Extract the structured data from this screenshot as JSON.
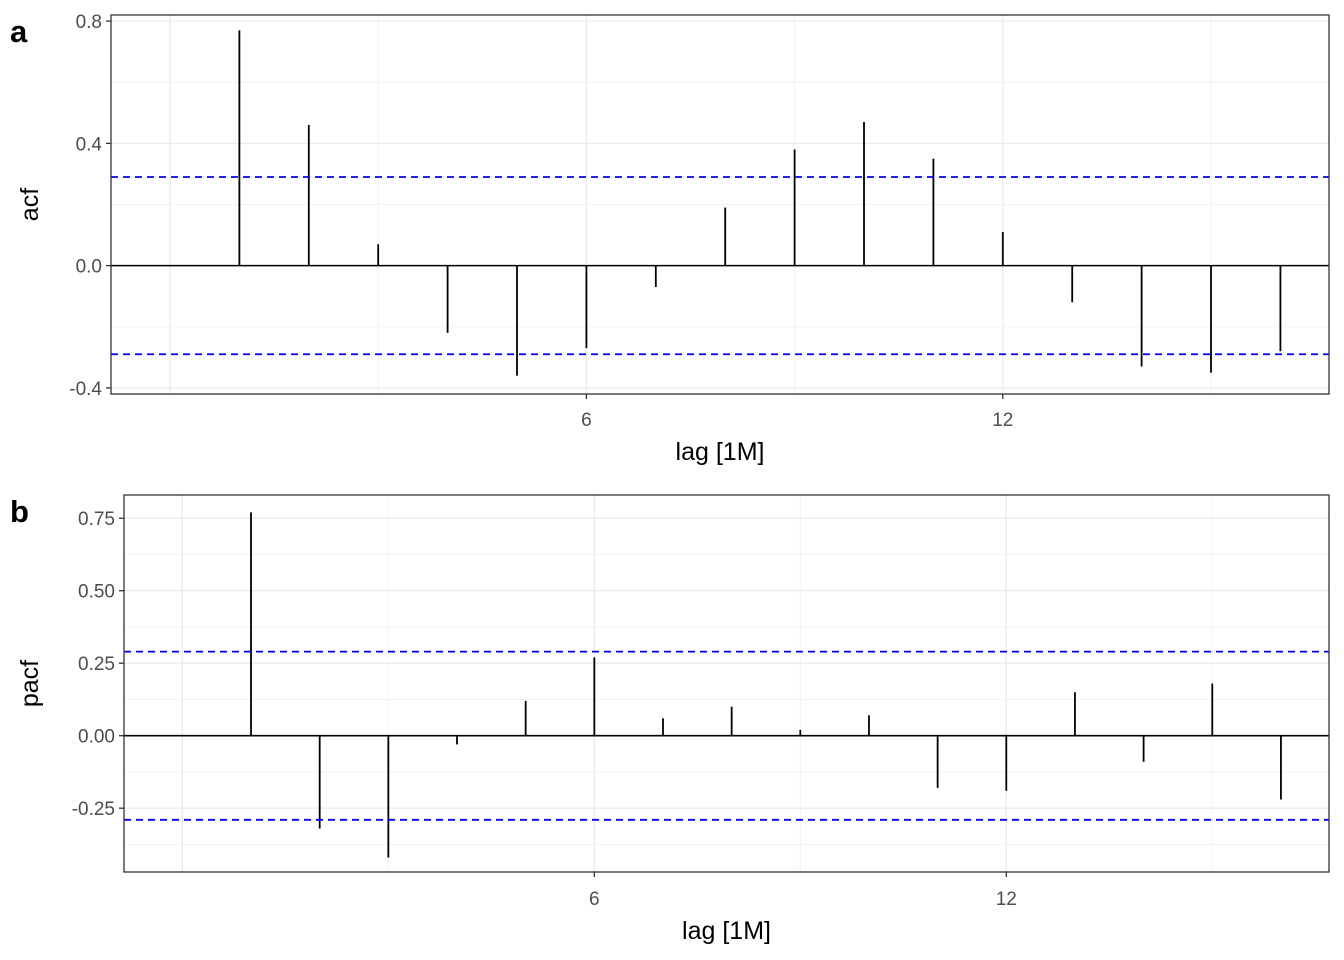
{
  "chart_data": [
    {
      "type": "bar",
      "panel_label": "a",
      "xlabel": "lag [1M]",
      "ylabel": "acf",
      "x": [
        1,
        2,
        3,
        4,
        5,
        6,
        7,
        8,
        9,
        10,
        11,
        12,
        13,
        14,
        15,
        16
      ],
      "values": [
        0.77,
        0.46,
        0.07,
        -0.22,
        -0.36,
        -0.27,
        -0.07,
        0.19,
        0.38,
        0.47,
        0.35,
        0.11,
        -0.12,
        -0.33,
        -0.35,
        -0.28
      ],
      "ci": 0.29,
      "xticks": [
        6,
        12
      ],
      "xtick_labels": [
        "6",
        "12"
      ],
      "yticks": [
        -0.4,
        0.0,
        0.4,
        0.8
      ],
      "ytick_labels": [
        "-0.4",
        "0.0",
        "0.4",
        "0.8"
      ],
      "xlim": [
        -0.85,
        16.7
      ],
      "ylim": [
        -0.42,
        0.82
      ],
      "grid": true
    },
    {
      "type": "bar",
      "panel_label": "b",
      "xlabel": "lag [1M]",
      "ylabel": "pacf",
      "x": [
        1,
        2,
        3,
        4,
        5,
        6,
        7,
        8,
        9,
        10,
        11,
        12,
        13,
        14,
        15,
        16
      ],
      "values": [
        0.77,
        -0.32,
        -0.42,
        -0.03,
        0.12,
        0.27,
        0.06,
        0.1,
        0.02,
        0.07,
        -0.18,
        -0.19,
        0.15,
        -0.09,
        0.18,
        -0.22
      ],
      "ci": 0.29,
      "xticks": [
        6,
        12
      ],
      "xtick_labels": [
        "6",
        "12"
      ],
      "yticks": [
        -0.25,
        0.0,
        0.25,
        0.5,
        0.75
      ],
      "ytick_labels": [
        "-0.25",
        "0.00",
        "0.25",
        "0.50",
        "0.75"
      ],
      "xlim": [
        -0.85,
        16.7
      ],
      "ylim": [
        -0.47,
        0.83
      ],
      "grid": true
    }
  ],
  "colors": {
    "ci_line": "#0000ff",
    "bar": "#000000",
    "grid_major": "#ebebeb",
    "grid_minor": "#f3f3f3",
    "border": "#333333"
  }
}
